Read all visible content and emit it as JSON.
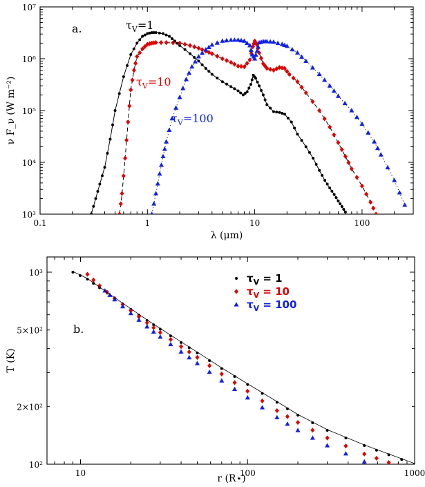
{
  "colors": {
    "tau1": "#000000",
    "tau10": "#e00000",
    "tau100": "#1020e8"
  },
  "chart_data": [
    {
      "type": "line",
      "panel_label": "a.",
      "xlabel": "λ (μm)",
      "ylabel": "ν F_ν (W m⁻²)",
      "xscale": "log",
      "yscale": "log",
      "xlim": [
        0.1,
        300
      ],
      "ylim": [
        1000,
        10000000
      ],
      "x_tick_labels": [
        "0.1",
        "1",
        "10",
        "100"
      ],
      "y_tick_labels": [
        "10³",
        "10⁴",
        "10⁵",
        "10⁶",
        "10⁷"
      ],
      "grid": false,
      "series": [
        {
          "name": "τV=1",
          "color": "#000000",
          "line": "solid",
          "marker": "circle",
          "x": [
            0.3,
            0.33,
            0.36,
            0.4,
            0.45,
            0.5,
            0.6,
            0.7,
            0.8,
            0.9,
            1.0,
            1.1,
            1.2,
            1.4,
            1.6,
            1.8,
            2.0,
            2.5,
            3.0,
            3.5,
            4.0,
            5.0,
            6.0,
            7.0,
            7.8,
            8.5,
            9.2,
            9.7,
            10.2,
            11.0,
            12.0,
            13.0,
            15.0,
            17.0,
            19.0,
            22.0,
            25.0,
            30.0,
            35.0,
            40.0,
            45.0,
            50.0,
            55.0,
            60.0,
            65.0,
            70.0
          ],
          "y": [
            1000,
            2000,
            3800,
            8000,
            28000,
            100000,
            450000,
            1200000,
            2000000,
            2700000,
            3050000,
            3200000,
            3200000,
            3050000,
            2700000,
            2200000,
            1800000,
            1250000,
            900000,
            650000,
            500000,
            360000,
            290000,
            240000,
            200000,
            230000,
            320000,
            480000,
            420000,
            300000,
            200000,
            130000,
            95000,
            92000,
            85000,
            60000,
            35000,
            20000,
            12000,
            7000,
            4500,
            3200,
            2400,
            1800,
            1400,
            1100
          ]
        },
        {
          "name": "τV=10",
          "color": "#e00000",
          "line": "dashed",
          "marker": "diamond",
          "x": [
            0.55,
            0.58,
            0.62,
            0.66,
            0.7,
            0.75,
            0.8,
            0.9,
            1.0,
            1.1,
            1.2,
            1.5,
            2.0,
            2.5,
            3.0,
            3.5,
            4.0,
            5.0,
            6.0,
            7.0,
            8.0,
            9.0,
            9.6,
            10.0,
            10.4,
            11.0,
            12.0,
            13.0,
            15.0,
            17.0,
            19.0,
            21.0,
            25.0,
            30.0,
            40.0,
            50.0,
            60.0,
            70.0,
            80.0,
            100.0,
            120.0,
            135.0
          ],
          "y": [
            1000,
            2500,
            12000,
            60000,
            250000,
            600000,
            1100000,
            1550000,
            1900000,
            2000000,
            2050000,
            2050000,
            2000000,
            1800000,
            1600000,
            1400000,
            1250000,
            1000000,
            850000,
            720000,
            700000,
            950000,
            1700000,
            2200000,
            1900000,
            1300000,
            800000,
            650000,
            600000,
            680000,
            650000,
            500000,
            360000,
            220000,
            100000,
            48000,
            24000,
            13000,
            7500,
            3500,
            1700,
            1000
          ]
        },
        {
          "name": "τV=100",
          "color": "#1020e8",
          "line": "dotted",
          "marker": "triangle",
          "x": [
            1.1,
            1.2,
            1.3,
            1.4,
            1.5,
            1.7,
            2.0,
            2.3,
            2.6,
            3.0,
            3.5,
            4.0,
            5.0,
            6.0,
            7.0,
            8.0,
            9.0,
            9.5,
            10.0,
            10.5,
            11.0,
            12.0,
            13.0,
            15.0,
            18.0,
            20.0,
            25.0,
            30.0,
            40.0,
            50.0,
            60.0,
            80.0,
            100.0,
            130.0,
            150.0,
            200.0,
            250.0
          ],
          "y": [
            1000,
            2500,
            6000,
            13000,
            25000,
            70000,
            180000,
            400000,
            700000,
            1100000,
            1500000,
            1850000,
            2200000,
            2300000,
            2300000,
            2200000,
            1800000,
            1200000,
            1000000,
            1400000,
            2050000,
            2150000,
            2150000,
            2100000,
            1900000,
            1750000,
            1300000,
            900000,
            500000,
            300000,
            190000,
            100000,
            55000,
            25000,
            14000,
            4500,
            1500
          ]
        }
      ]
    },
    {
      "type": "line",
      "panel_label": "b.",
      "xlabel": "r (R⋆)",
      "ylabel": "T (K)",
      "xscale": "log",
      "yscale": "log",
      "xlim": [
        6.3,
        1000
      ],
      "ylim": [
        100,
        1200
      ],
      "x_tick_labels": [
        "10",
        "100",
        "1000"
      ],
      "y_tick_labels": [
        "10³",
        "5×10²",
        "2×10²",
        "10²"
      ],
      "grid": false,
      "legend": {
        "location": "top-right"
      },
      "series": [
        {
          "name": "τV = 1",
          "legend_label": "τ",
          "legend_sub": "V",
          "legend_value": " = 1",
          "color": "#000000",
          "marker": "circle",
          "x": [
            9,
            11,
            13,
            16,
            20,
            25,
            30,
            40,
            50,
            70,
            100,
            150,
            200,
            300,
            500,
            700,
            1000
          ],
          "y": [
            1000,
            920,
            830,
            730,
            640,
            560,
            505,
            430,
            380,
            315,
            260,
            210,
            180,
            150,
            125,
            112,
            100
          ]
        },
        {
          "name": "τV = 10",
          "legend_label": "τ",
          "legend_sub": "V",
          "legend_value": " = 10",
          "color": "#e00000",
          "marker": "diamond",
          "x": [
            11,
            13,
            16,
            20,
            25,
            30,
            40,
            50,
            70,
            100,
            150,
            200,
            300,
            500,
            700,
            900
          ],
          "y": [
            975,
            850,
            730,
            630,
            545,
            485,
            410,
            360,
            295,
            240,
            190,
            165,
            137,
            113,
            102,
            95
          ]
        },
        {
          "name": "τV = 100",
          "legend_label": "τ",
          "legend_sub": "V",
          "legend_value": " = 100",
          "color": "#1020e8",
          "marker": "triangle",
          "x": [
            14,
            16,
            20,
            25,
            30,
            40,
            50,
            70,
            100,
            150,
            200,
            300,
            500,
            700
          ],
          "y": [
            800,
            720,
            610,
            520,
            460,
            385,
            335,
            272,
            222,
            175,
            150,
            125,
            103,
            92
          ]
        }
      ]
    }
  ]
}
